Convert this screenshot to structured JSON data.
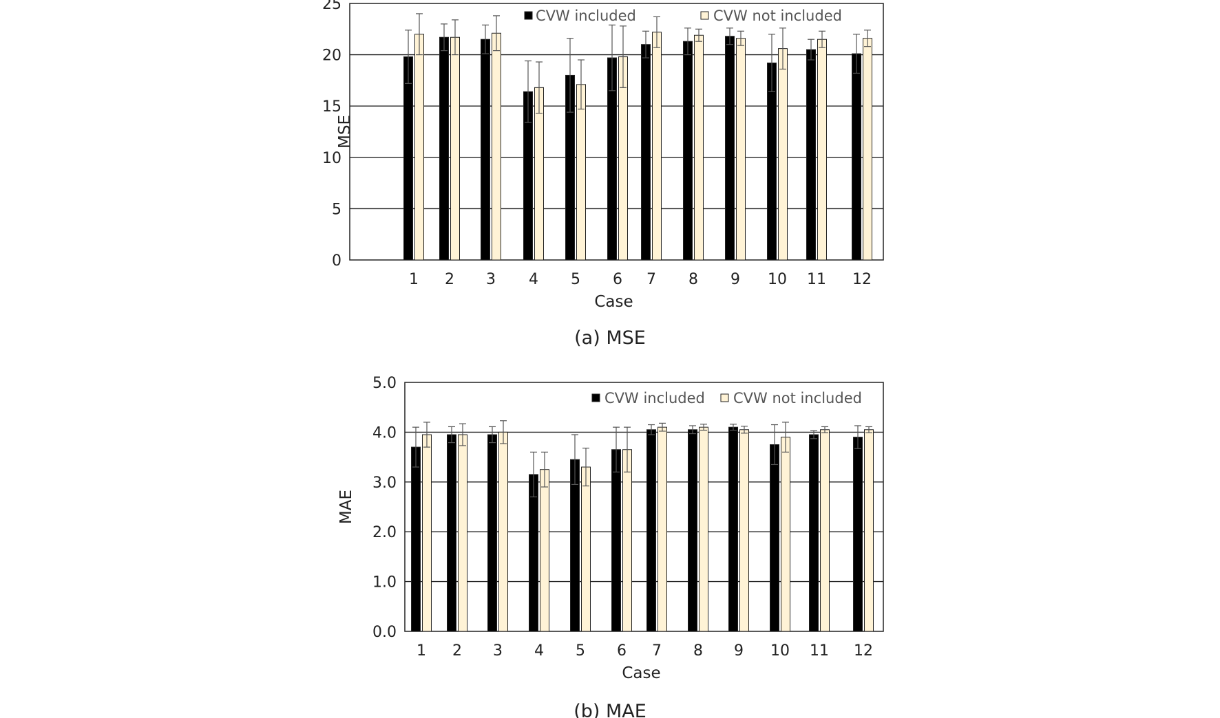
{
  "chart_data": [
    {
      "type": "bar",
      "caption": "(a)  MSE",
      "xlabel": "Case",
      "ylabel": "MSE",
      "ylim": [
        0,
        25
      ],
      "yticks": [
        "0",
        "5",
        "10",
        "15",
        "20",
        "25"
      ],
      "grid": true,
      "legend_position": "top",
      "categories": [
        "1",
        "2",
        "3",
        "4",
        "5",
        "6",
        "7",
        "8",
        "9",
        "10",
        "11",
        "12"
      ],
      "series": [
        {
          "name": "CVW included",
          "color": "#000000",
          "values": [
            19.8,
            21.7,
            21.5,
            16.4,
            18.0,
            19.7,
            21.0,
            21.3,
            21.8,
            19.2,
            20.5,
            20.1
          ],
          "errors": [
            2.6,
            1.3,
            1.4,
            3.0,
            3.6,
            3.2,
            1.3,
            1.3,
            0.8,
            2.8,
            1.0,
            1.9
          ]
        },
        {
          "name": "CVW not included",
          "color": "#FFF3D6",
          "values": [
            22.0,
            21.7,
            22.1,
            16.8,
            17.1,
            19.8,
            22.2,
            21.9,
            21.6,
            20.6,
            21.5,
            21.6
          ],
          "errors": [
            2.0,
            1.7,
            1.7,
            2.5,
            2.4,
            3.0,
            1.5,
            0.6,
            0.7,
            2.0,
            0.8,
            0.8
          ]
        }
      ]
    },
    {
      "type": "bar",
      "caption": "(b)  MAE",
      "xlabel": "Case",
      "ylabel": "MAE",
      "ylim": [
        0,
        5
      ],
      "yticks": [
        "0.0",
        "1.0",
        "2.0",
        "3.0",
        "4.0",
        "5.0"
      ],
      "grid": true,
      "legend_position": "top-right",
      "categories": [
        "1",
        "2",
        "3",
        "4",
        "5",
        "6",
        "7",
        "8",
        "9",
        "10",
        "11",
        "12"
      ],
      "series": [
        {
          "name": "CVW included",
          "color": "#000000",
          "values": [
            3.7,
            3.95,
            3.95,
            3.15,
            3.45,
            3.65,
            4.05,
            4.05,
            4.1,
            3.75,
            3.95,
            3.9
          ],
          "errors": [
            0.4,
            0.16,
            0.16,
            0.45,
            0.5,
            0.45,
            0.1,
            0.08,
            0.06,
            0.4,
            0.08,
            0.23
          ]
        },
        {
          "name": "CVW not included",
          "color": "#FFF3D6",
          "values": [
            3.95,
            3.95,
            4.0,
            3.25,
            3.3,
            3.65,
            4.1,
            4.1,
            4.05,
            3.9,
            4.05,
            4.05
          ],
          "errors": [
            0.25,
            0.22,
            0.23,
            0.35,
            0.38,
            0.45,
            0.08,
            0.06,
            0.07,
            0.3,
            0.06,
            0.06
          ]
        }
      ]
    }
  ]
}
